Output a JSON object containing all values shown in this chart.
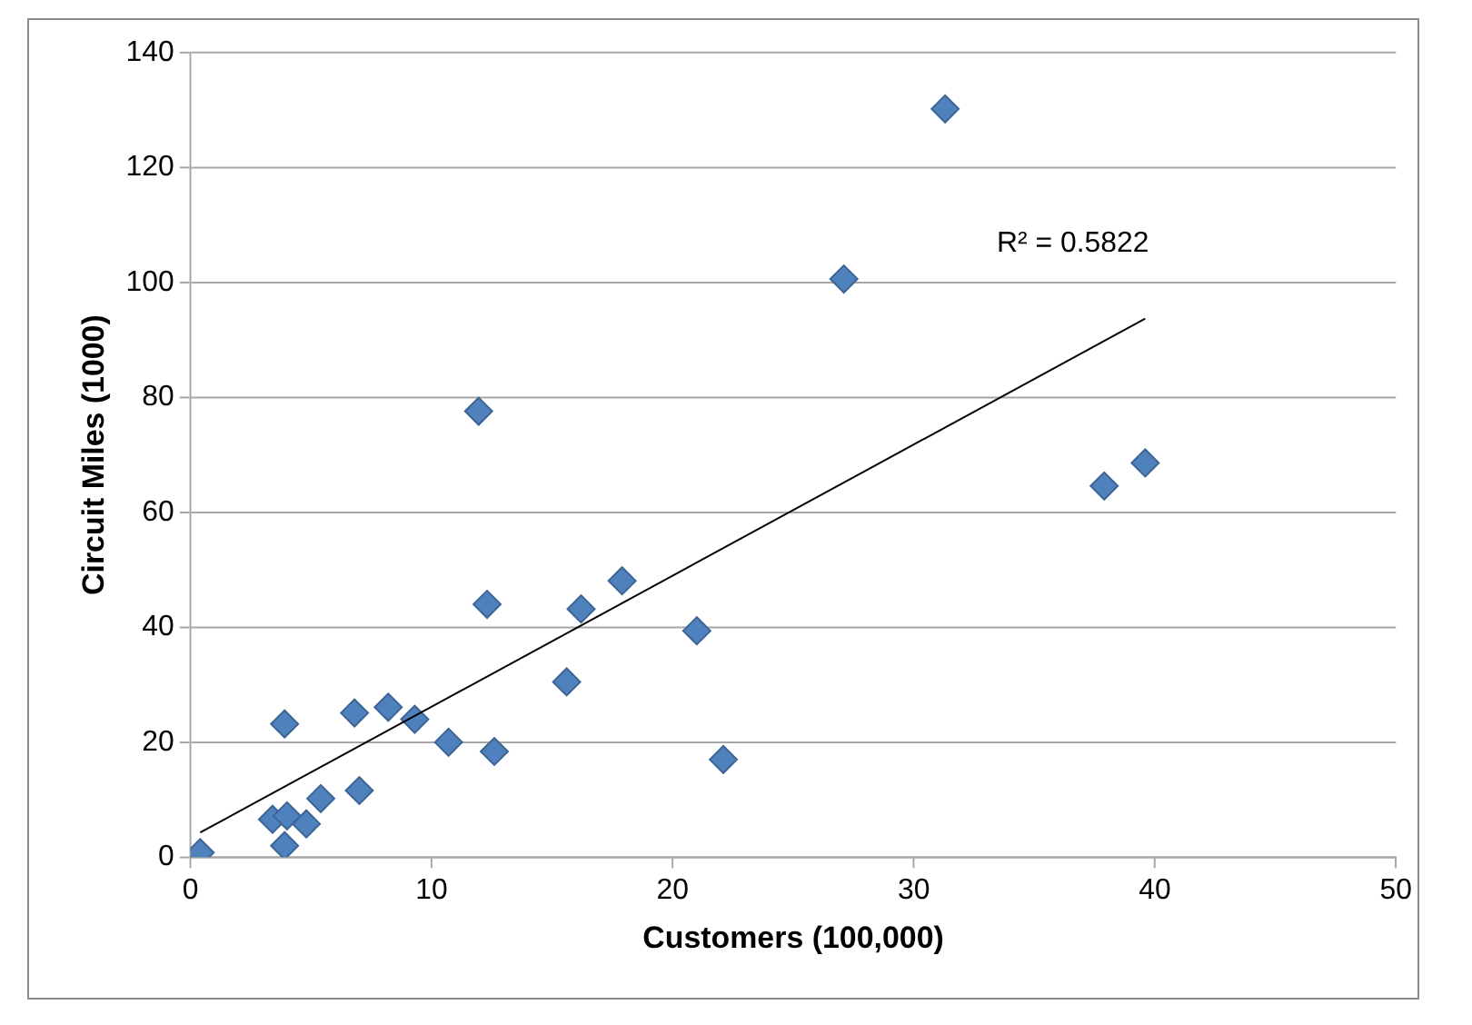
{
  "chart_data": {
    "type": "scatter",
    "xlabel": "Customers (100,000)",
    "ylabel": "Circuit Miles (1000)",
    "xlim": [
      0,
      50
    ],
    "xticks": [
      0,
      10,
      20,
      30,
      40,
      50
    ],
    "ylim": [
      0,
      140
    ],
    "yticks": [
      0,
      20,
      40,
      60,
      80,
      100,
      120,
      140
    ],
    "grid": "y",
    "legend": false,
    "series": [
      {
        "color": "#4f81bd",
        "marker": "diamond",
        "x": [
          0.4,
          3.9,
          3.4,
          4.0,
          4.8,
          5.4,
          7.0,
          3.9,
          6.8,
          8.2,
          9.3,
          10.7,
          12.6,
          15.6,
          11.95,
          12.3,
          16.2,
          17.9,
          21.0,
          22.1,
          27.1,
          31.3,
          37.9,
          39.6
        ],
        "values": [
          0.8,
          2,
          6.6,
          7.2,
          5.8,
          10.2,
          11.6,
          23.2,
          25.1,
          26.1,
          24,
          20,
          18.4,
          30.5,
          77.6,
          44,
          43.2,
          48.1,
          39.4,
          17,
          100.6,
          130.2,
          64.6,
          68.6
        ]
      },
      {
        "type": "line",
        "color": "#000000",
        "line_style": "solid",
        "marker": "none",
        "x": [
          0.4,
          39.6
        ],
        "values": [
          4.3,
          93.7
        ]
      }
    ],
    "annotations": [
      "R² = 0.5822"
    ]
  }
}
